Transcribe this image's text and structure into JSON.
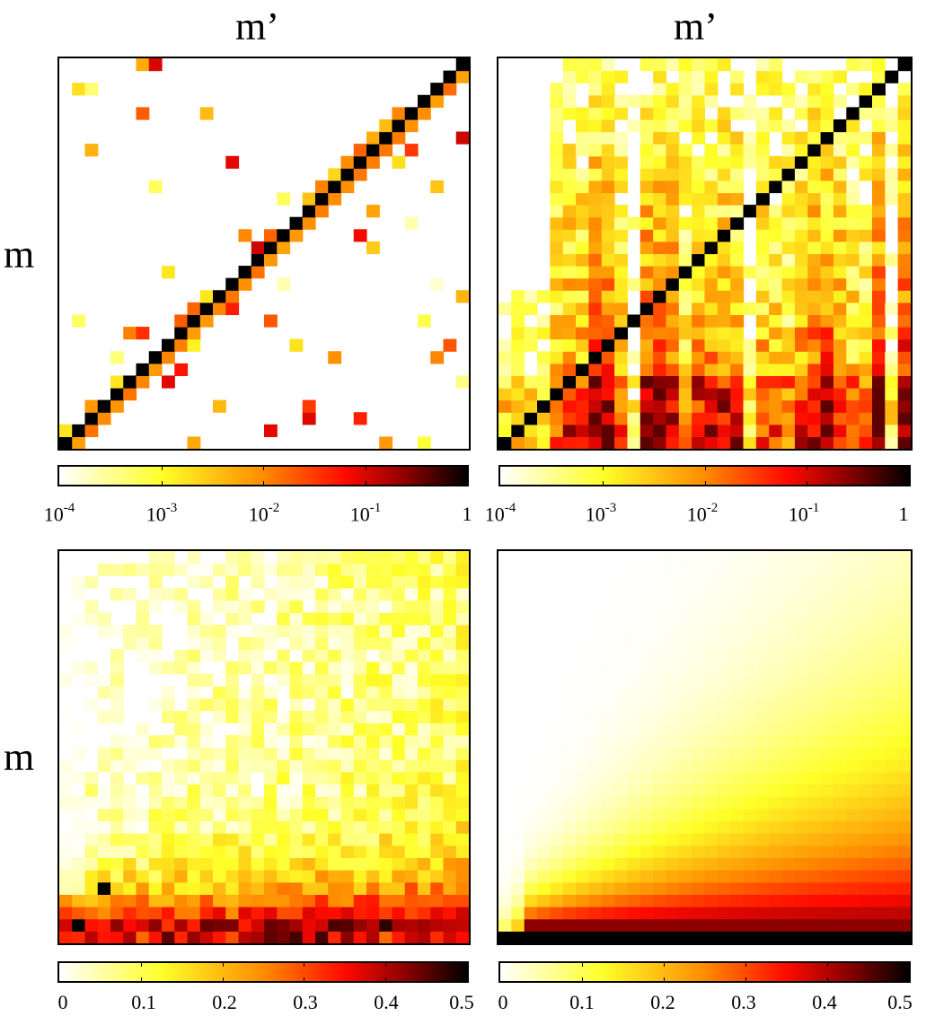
{
  "chart_data": [
    {
      "type": "heatmap",
      "panel": "top-left",
      "xlabel": "m’",
      "ylabel": "m",
      "grid": "32x32",
      "scale": "log",
      "colorbar": {
        "min": "10^-4",
        "max": "1",
        "ticks": [
          {
            "base": "10",
            "exp": "-4"
          },
          {
            "base": "10",
            "exp": "-3"
          },
          {
            "base": "10",
            "exp": "-2"
          },
          {
            "base": "10",
            "exp": "-1"
          },
          {
            "base": "1",
            "exp": ""
          }
        ]
      },
      "description_values": "strong diagonal (value ~1), sparse scattered off-diagonal entries mostly above diagonal"
    },
    {
      "type": "heatmap",
      "panel": "top-right",
      "xlabel": "m’",
      "ylabel": "",
      "grid": "32x32",
      "scale": "log",
      "colorbar": {
        "min": "10^-4",
        "max": "1",
        "ticks": [
          {
            "base": "10",
            "exp": "-4"
          },
          {
            "base": "10",
            "exp": "-3"
          },
          {
            "base": "10",
            "exp": "-2"
          },
          {
            "base": "10",
            "exp": "-1"
          },
          {
            "base": "1",
            "exp": ""
          }
        ]
      },
      "description_values": "diagonal of ~1 with dense off-diagonal mass in vertical column bands"
    },
    {
      "type": "heatmap",
      "panel": "bottom-left",
      "xlabel": "",
      "ylabel": "m",
      "grid": "32x32",
      "scale": "linear",
      "colorbar": {
        "min": 0,
        "max": 0.5,
        "ticks": [
          "0",
          "0.1",
          "0.2",
          "0.3",
          "0.4",
          "0.5"
        ]
      },
      "description_values": "values concentrated in bottom rows (up to 0.5), noisy decay upward"
    },
    {
      "type": "heatmap",
      "panel": "bottom-right",
      "xlabel": "",
      "ylabel": "",
      "grid": "32x32",
      "scale": "linear",
      "colorbar": {
        "min": 0,
        "max": 0.5,
        "ticks": [
          "0",
          "0.1",
          "0.2",
          "0.3",
          "0.4",
          "0.5"
        ]
      },
      "description_values": "smooth distribution, bottom row ~0.5, decaying upward, wider toward right"
    }
  ],
  "labels": {
    "top_left_xlabel": "m’",
    "top_right_xlabel": "m’",
    "top_ylabel": "m",
    "bottom_ylabel": "m"
  },
  "colors": {
    "low": "#ffffff",
    "yellow": "#ffff00",
    "orange": "#ff8000",
    "red": "#ff0000",
    "dark": "#000000"
  }
}
